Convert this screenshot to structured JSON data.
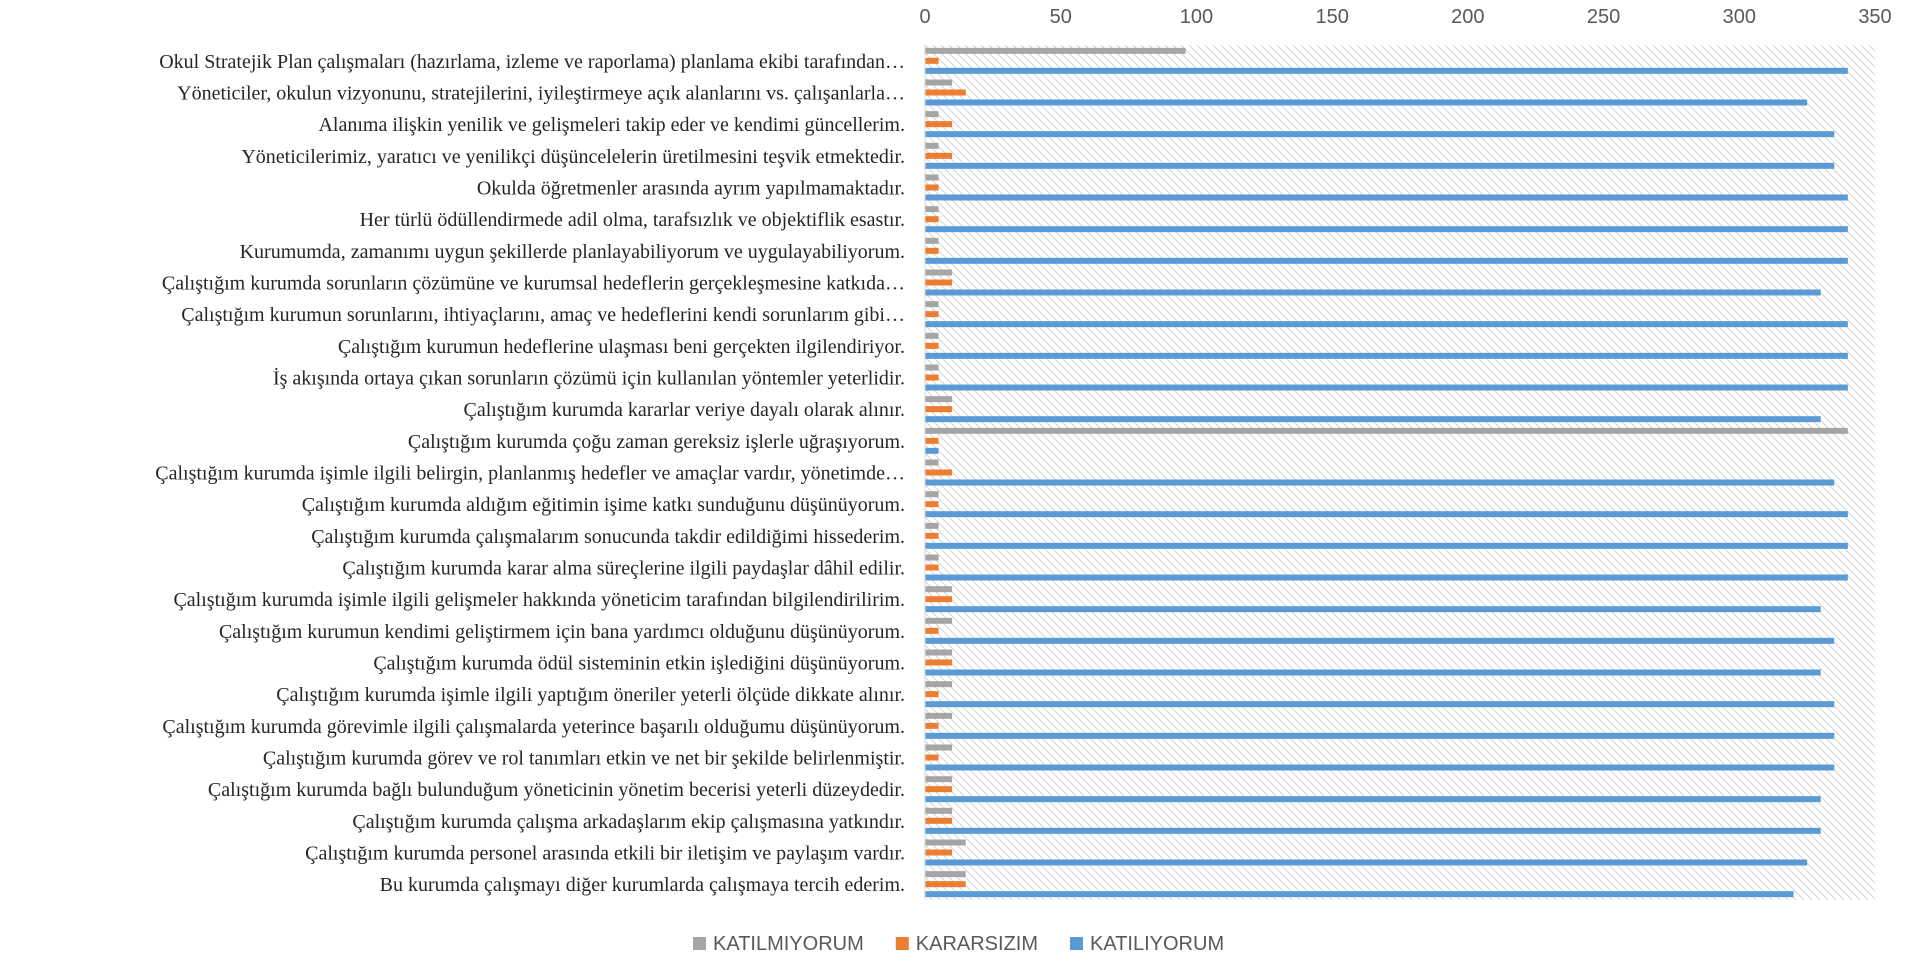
{
  "chart_data": {
    "type": "bar",
    "orientation": "horizontal",
    "xlim": [
      0,
      350
    ],
    "x_ticks": [
      0,
      50,
      100,
      150,
      200,
      250,
      300,
      350
    ],
    "x_axis_position": "top",
    "grid": false,
    "plot_background": "diagonal hatch",
    "legend_position": "bottom",
    "categories": [
      "Okul Stratejik Plan çalışmaları (hazırlama, izleme ve raporlama) planlama ekibi tarafından…",
      "Yöneticiler, okulun vizyonunu, stratejilerini, iyileştirmeye açık alanlarını vs. çalışanlarla…",
      "Alanıma ilişkin yenilik ve gelişmeleri takip eder ve kendimi güncellerim.",
      "Yöneticilerimiz, yaratıcı ve yenilikçi düşüncelelerin üretilmesini teşvik etmektedir.",
      "Okulda öğretmenler arasında ayrım yapılmamaktadır.",
      "Her türlü ödüllendirmede adil olma, tarafsızlık ve objektiflik esastır.",
      "Kurumumda, zamanımı uygun şekillerde planlayabiliyorum ve uygulayabiliyorum.",
      "Çalıştığım kurumda sorunların çözümüne ve kurumsal hedeflerin gerçekleşmesine katkıda…",
      "Çalıştığım kurumun sorunlarını, ihtiyaçlarını, amaç ve hedeflerini kendi sorunlarım gibi…",
      "Çalıştığım kurumun hedeflerine ulaşması beni gerçekten ilgilendiriyor.",
      "İş akışında ortaya çıkan sorunların çözümü için kullanılan yöntemler yeterlidir.",
      "Çalıştığım kurumda kararlar veriye dayalı olarak alınır.",
      "Çalıştığım kurumda çoğu zaman gereksiz işlerle uğraşıyorum.",
      "Çalıştığım kurumda işimle ilgili belirgin, planlanmış hedefler ve amaçlar vardır, yönetimde…",
      "Çalıştığım kurumda aldığım eğitimin işime katkı sunduğunu düşünüyorum.",
      "Çalıştığım kurumda çalışmalarım sonucunda takdir edildiğimi hissederim.",
      "Çalıştığım kurumda karar alma süreçlerine ilgili paydaşlar dâhil edilir.",
      "Çalıştığım kurumda işimle ilgili gelişmeler hakkında yöneticim tarafından bilgilendirilirim.",
      "Çalıştığım kurumun kendimi geliştirmem için bana yardımcı olduğunu düşünüyorum.",
      "Çalıştığım kurumda ödül sisteminin etkin işlediğini düşünüyorum.",
      "Çalıştığım kurumda işimle ilgili yaptığım öneriler yeterli ölçüde dikkate alınır.",
      "Çalıştığım kurumda görevimle ilgili çalışmalarda yeterince başarılı olduğumu düşünüyorum.",
      "Çalıştığım kurumda görev ve rol tanımları etkin ve net bir şekilde belirlenmiştir.",
      "Çalıştığım kurumda bağlı bulunduğum yöneticinin yönetim becerisi yeterli düzeydedir.",
      "Çalıştığım kurumda çalışma arkadaşlarım ekip çalışmasına yatkındır.",
      "Çalıştığım kurumda personel arasında etkili bir iletişim ve paylaşım vardır.",
      "Bu kurumda çalışmayı diğer kurumlarda çalışmaya tercih ederim."
    ],
    "series": [
      {
        "name": "KATILMIYORUM",
        "color": "#A5A5A5",
        "values": [
          96,
          10,
          5,
          5,
          5,
          5,
          5,
          10,
          5,
          5,
          5,
          10,
          340,
          5,
          5,
          5,
          5,
          10,
          10,
          10,
          10,
          10,
          10,
          10,
          10,
          15,
          15
        ]
      },
      {
        "name": "KARARSIZIM",
        "color": "#ED7D31",
        "values": [
          5,
          15,
          10,
          10,
          5,
          5,
          5,
          10,
          5,
          5,
          5,
          10,
          5,
          10,
          5,
          5,
          5,
          10,
          5,
          10,
          5,
          5,
          5,
          10,
          10,
          10,
          15
        ]
      },
      {
        "name": "KATILIYORUM",
        "color": "#5B9BD5",
        "values": [
          340,
          325,
          335,
          335,
          340,
          340,
          340,
          330,
          340,
          340,
          340,
          330,
          5,
          335,
          340,
          340,
          340,
          330,
          335,
          330,
          335,
          335,
          335,
          330,
          330,
          325,
          320
        ]
      }
    ]
  }
}
